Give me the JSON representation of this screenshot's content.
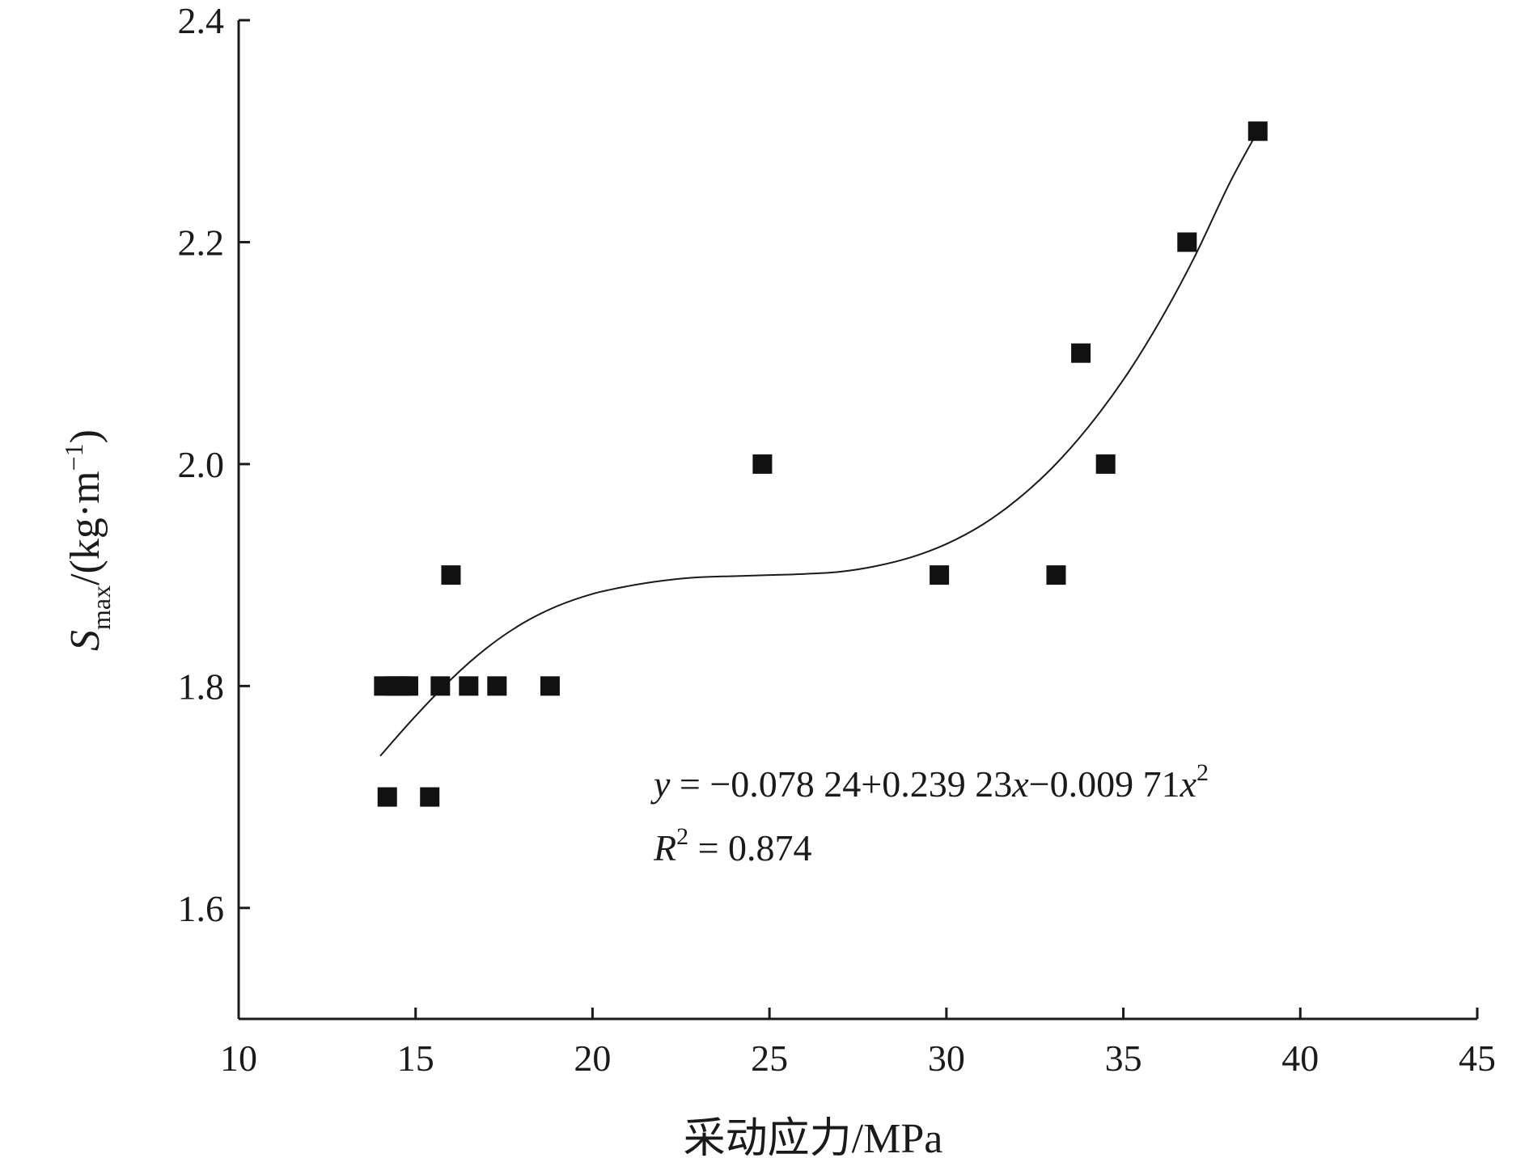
{
  "chart_data": {
    "type": "scatter",
    "xlabel": "采动应力/MPa",
    "ylabel": "S",
    "ylabel_sub": "max",
    "ylabel_unit": "/(kg·m",
    "ylabel_sup": "−1",
    "ylabel_close": ")",
    "xlim": [
      10,
      45
    ],
    "ylim": [
      1.5,
      2.4
    ],
    "xticks": [
      "10",
      "15",
      "20",
      "25",
      "30",
      "35",
      "40",
      "45"
    ],
    "xtick_values": [
      10,
      15,
      20,
      25,
      30,
      35,
      40,
      45
    ],
    "yticks": [
      "1.6",
      "1.8",
      "2.0",
      "2.2",
      "2.4"
    ],
    "ytick_values": [
      1.6,
      1.8,
      2.0,
      2.2,
      2.4
    ],
    "points": [
      {
        "x": 14.1,
        "y": 1.8
      },
      {
        "x": 14.4,
        "y": 1.8
      },
      {
        "x": 14.6,
        "y": 1.8
      },
      {
        "x": 14.8,
        "y": 1.8
      },
      {
        "x": 15.7,
        "y": 1.8
      },
      {
        "x": 16.5,
        "y": 1.8
      },
      {
        "x": 17.3,
        "y": 1.8
      },
      {
        "x": 18.8,
        "y": 1.8
      },
      {
        "x": 14.2,
        "y": 1.7
      },
      {
        "x": 15.4,
        "y": 1.7
      },
      {
        "x": 16.0,
        "y": 1.9
      },
      {
        "x": 24.8,
        "y": 2.0
      },
      {
        "x": 29.8,
        "y": 1.9
      },
      {
        "x": 33.1,
        "y": 1.9
      },
      {
        "x": 33.8,
        "y": 2.1
      },
      {
        "x": 34.5,
        "y": 2.0
      },
      {
        "x": 36.8,
        "y": 2.2
      },
      {
        "x": 38.8,
        "y": 2.3
      }
    ],
    "fit_curve": [
      {
        "x": 14.0,
        "y": 1.737
      },
      {
        "x": 15.0,
        "y": 1.773
      },
      {
        "x": 16.0,
        "y": 1.806
      },
      {
        "x": 17.0,
        "y": 1.834
      },
      {
        "x": 18.0,
        "y": 1.856
      },
      {
        "x": 19.0,
        "y": 1.872
      },
      {
        "x": 20.0,
        "y": 1.883
      },
      {
        "x": 21.0,
        "y": 1.89
      },
      {
        "x": 22.0,
        "y": 1.895
      },
      {
        "x": 23.0,
        "y": 1.898
      },
      {
        "x": 24.0,
        "y": 1.899
      },
      {
        "x": 25.0,
        "y": 1.9
      },
      {
        "x": 26.0,
        "y": 1.901
      },
      {
        "x": 27.0,
        "y": 1.903
      },
      {
        "x": 28.0,
        "y": 1.908
      },
      {
        "x": 29.0,
        "y": 1.916
      },
      {
        "x": 30.0,
        "y": 1.928
      },
      {
        "x": 31.0,
        "y": 1.945
      },
      {
        "x": 32.0,
        "y": 1.968
      },
      {
        "x": 33.0,
        "y": 1.997
      },
      {
        "x": 34.0,
        "y": 2.033
      },
      {
        "x": 35.0,
        "y": 2.076
      },
      {
        "x": 36.0,
        "y": 2.127
      },
      {
        "x": 37.0,
        "y": 2.186
      },
      {
        "x": 38.0,
        "y": 2.253
      },
      {
        "x": 38.8,
        "y": 2.3
      }
    ],
    "equation": {
      "y_var": "y",
      "part1": " = −0.078 24+0.239 23",
      "x_var": "x",
      "part2": "−0.009 71",
      "x_var2": "x",
      "sup": "2"
    },
    "r2": {
      "var": "R",
      "sup": "2",
      "text": " = 0.874"
    },
    "grid": false,
    "legend": "none"
  }
}
